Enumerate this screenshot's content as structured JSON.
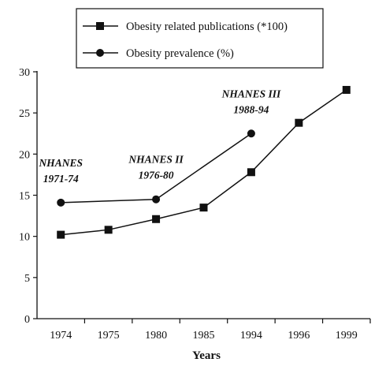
{
  "chart_data": {
    "type": "line",
    "title": "",
    "xlabel": "Years",
    "ylabel": "",
    "categories": [
      "1974",
      "1975",
      "1980",
      "1985",
      "1994",
      "1996",
      "1999"
    ],
    "ylim": [
      0,
      30
    ],
    "yticks": [
      "0",
      "5",
      "10",
      "15",
      "20",
      "25",
      "30"
    ],
    "grid": false,
    "legend_position": "top",
    "series": [
      {
        "name": "Obesity related publications (*100)",
        "marker": "square",
        "values": [
          10.2,
          10.8,
          12.1,
          13.5,
          17.8,
          23.8,
          27.8
        ]
      },
      {
        "name": "Obesity prevalence (%)",
        "marker": "circle",
        "points": [
          {
            "category": "1974",
            "value": 14.1
          },
          {
            "category": "1980",
            "value": 14.5
          },
          {
            "category": "1994",
            "value": 22.5
          }
        ]
      }
    ],
    "annotations": [
      {
        "lines": [
          "NHANES",
          "1971-74"
        ],
        "category": "1974"
      },
      {
        "lines": [
          "NHANES II",
          "1976-80"
        ],
        "category": "1980"
      },
      {
        "lines": [
          "NHANES III",
          "1988-94"
        ],
        "category": "1994"
      }
    ],
    "colors": {
      "ink": "#111111"
    }
  }
}
